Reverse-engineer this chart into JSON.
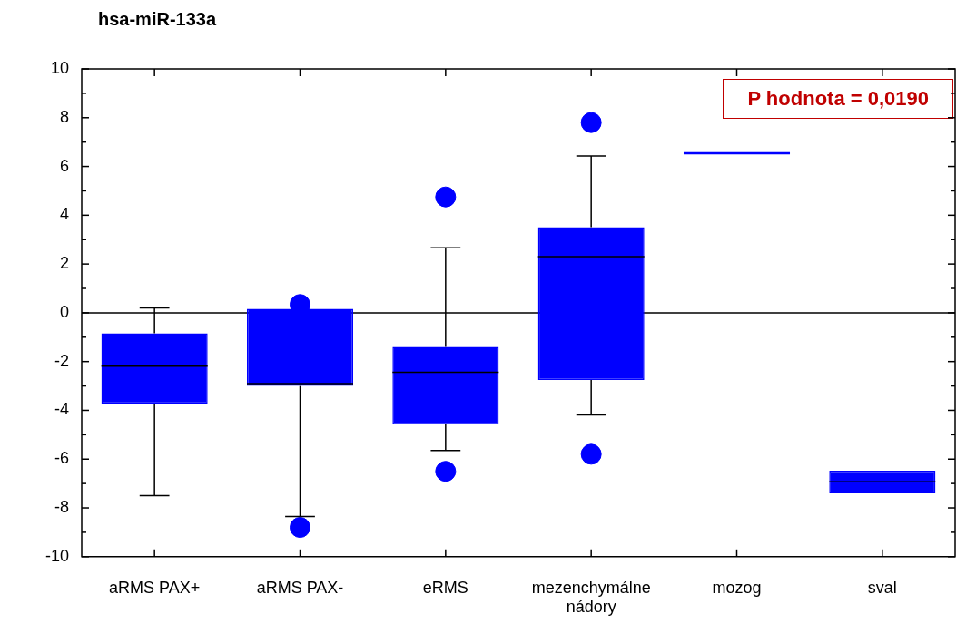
{
  "chart_data": {
    "type": "box",
    "title": "hsa-miR-133a",
    "categories": [
      "aRMS PAX+",
      "aRMS PAX-",
      "eRMS",
      "mezenchymálne nádory",
      "mozog",
      "sval"
    ],
    "boxes": [
      {
        "low": -7.5,
        "q1": -3.73,
        "median": -2.19,
        "q3": -0.84,
        "high": 0.2
      },
      {
        "low": -8.35,
        "q1": -3.0,
        "median": -2.9,
        "q3": 0.16,
        "high": 0.16,
        "outliers": [
          0.34,
          -8.8
        ]
      },
      {
        "low": -5.65,
        "q1": -4.58,
        "median": -2.44,
        "q3": -1.4,
        "high": 2.66,
        "outliers": [
          4.75,
          -6.5
        ]
      },
      {
        "low": -4.19,
        "q1": -2.76,
        "median": 2.3,
        "q3": 3.51,
        "high": 6.43,
        "outliers": [
          7.8,
          -5.8
        ]
      },
      {
        "low": 6.54,
        "q1": 6.54,
        "median": 6.54,
        "q3": 6.54,
        "high": 6.54
      },
      {
        "low": -7.4,
        "q1": -7.4,
        "median": -6.93,
        "q3": -6.47,
        "high": -6.47
      }
    ],
    "color": "#0000ff",
    "ylim": [
      -10,
      10
    ],
    "yticks": [
      -10,
      -8,
      -6,
      -4,
      -2,
      0,
      2,
      4,
      6,
      8,
      10
    ],
    "ref_lines": [
      {
        "axis": "y",
        "value": 0,
        "color": "#000000"
      }
    ],
    "annotations": [
      "P hodnota = 0,0190"
    ],
    "grid": false,
    "legend": false
  }
}
